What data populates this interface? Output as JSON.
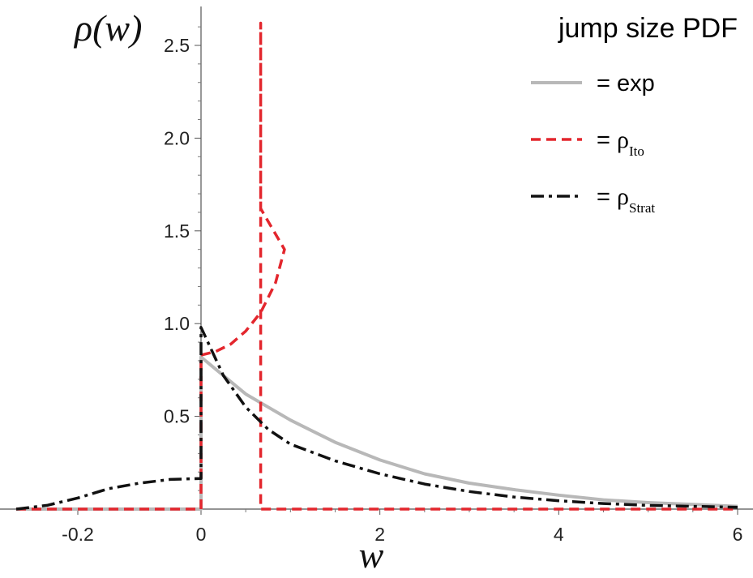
{
  "chart_data": {
    "type": "line",
    "ylabel": "ρ(w)",
    "xlabel": "w",
    "xlim": [
      -0.3,
      6.05
    ],
    "ylim": [
      0,
      2.7
    ],
    "x_ticks": [
      {
        "value": -0.2,
        "label": "-0.2"
      },
      {
        "value": 0,
        "label": "0"
      },
      {
        "value": 2,
        "label": "2"
      },
      {
        "value": 4,
        "label": "4"
      },
      {
        "value": 6,
        "label": "6"
      }
    ],
    "y_ticks": [
      {
        "value": 0.5,
        "label": "0.5"
      },
      {
        "value": 1.0,
        "label": "1.0"
      },
      {
        "value": 1.5,
        "label": "1.5"
      },
      {
        "value": 2.0,
        "label": "2.0"
      },
      {
        "value": 2.5,
        "label": "2.5"
      }
    ],
    "legend": {
      "title": "jump size PDF",
      "placement": "top-right",
      "entries": [
        {
          "series": "exp",
          "prefix": "= ",
          "main": "exp",
          "sub": ""
        },
        {
          "series": "ito",
          "prefix": "= ",
          "main": "ρ",
          "sub": "Ito"
        },
        {
          "series": "strat",
          "prefix": "= ",
          "main": "ρ",
          "sub": "Strat"
        }
      ]
    },
    "series": [
      {
        "name": "exp",
        "color": "#b8b8b8",
        "dash": "solid",
        "points": [
          [
            -0.3,
            0
          ],
          [
            0,
            0
          ],
          [
            0,
            0.82
          ],
          [
            0.25,
            0.72
          ],
          [
            0.5,
            0.62
          ],
          [
            0.75,
            0.55
          ],
          [
            1.0,
            0.48
          ],
          [
            1.25,
            0.42
          ],
          [
            1.5,
            0.36
          ],
          [
            2.0,
            0.265
          ],
          [
            2.5,
            0.19
          ],
          [
            3.0,
            0.14
          ],
          [
            3.5,
            0.105
          ],
          [
            4.0,
            0.075
          ],
          [
            4.5,
            0.05
          ],
          [
            5.0,
            0.035
          ],
          [
            5.5,
            0.025
          ],
          [
            6.0,
            0.015
          ]
        ]
      },
      {
        "name": "ρ_Ito",
        "color": "#e3262d",
        "dash": "dashed",
        "points": [
          [
            -0.3,
            0
          ],
          [
            0,
            0
          ],
          [
            0,
            0.83
          ],
          [
            0.25,
            0.85
          ],
          [
            0.5,
            0.89
          ],
          [
            0.75,
            0.96
          ],
          [
            1.0,
            1.06
          ],
          [
            1.25,
            1.22
          ],
          [
            1.4,
            1.4
          ],
          [
            1.5,
            1.62
          ],
          [
            1.5,
            2.62
          ],
          [
            1.5,
            0
          ],
          [
            6.0,
            0
          ]
        ]
      },
      {
        "name": "ρ_Strat",
        "color": "#111111",
        "dash": "dashdot",
        "points": [
          [
            -0.3,
            0
          ],
          [
            -0.25,
            0.02
          ],
          [
            -0.2,
            0.06
          ],
          [
            -0.15,
            0.11
          ],
          [
            -0.1,
            0.14
          ],
          [
            -0.05,
            0.16
          ],
          [
            0,
            0.165
          ],
          [
            0,
            0.98
          ],
          [
            0.25,
            0.72
          ],
          [
            0.5,
            0.55
          ],
          [
            0.75,
            0.43
          ],
          [
            1.0,
            0.35
          ],
          [
            1.5,
            0.26
          ],
          [
            2.0,
            0.19
          ],
          [
            2.5,
            0.135
          ],
          [
            3.0,
            0.095
          ],
          [
            3.5,
            0.065
          ],
          [
            4.0,
            0.045
          ],
          [
            4.5,
            0.03
          ],
          [
            5.0,
            0.02
          ],
          [
            6.0,
            0.01
          ]
        ]
      }
    ]
  }
}
